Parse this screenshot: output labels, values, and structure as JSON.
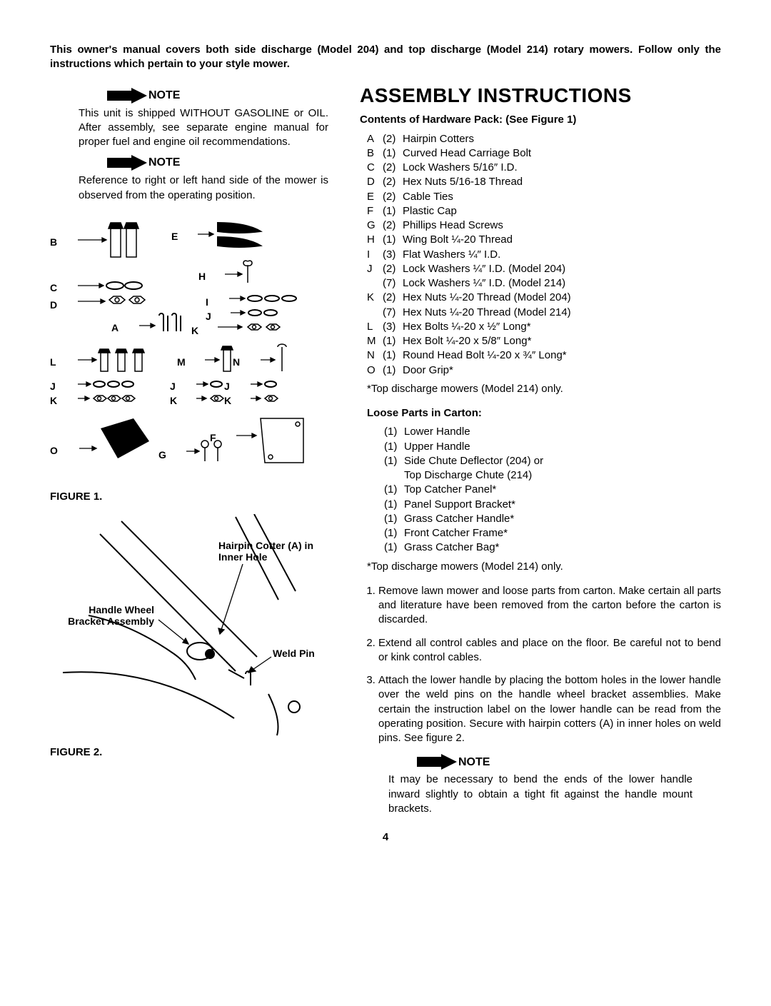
{
  "intro": "This owner's manual covers both side discharge (Model 204) and top discharge (Model 214) rotary mowers. Follow only the instructions which pertain to your style mower.",
  "notes": {
    "arrow_label": "NOTE",
    "note1": "This unit is shipped WITHOUT GASOLINE or OIL. After assembly, see separate engine manual for proper fuel and engine oil recommendations.",
    "note2": "Reference to right or left hand side of the mower is observed from the operating position.",
    "note3": "It may be necessary to bend the ends of the lower handle inward slightly to obtain a tight fit against the handle mount brackets."
  },
  "title": "ASSEMBLY INSTRUCTIONS",
  "hardware_head": "Contents of Hardware Pack: (See Figure 1)",
  "hardware": [
    {
      "l": "A",
      "q": "(2)",
      "d": "Hairpin Cotters"
    },
    {
      "l": "B",
      "q": "(1)",
      "d": "Curved Head Carriage Bolt"
    },
    {
      "l": "C",
      "q": "(2)",
      "d": "Lock Washers 5/16″ I.D."
    },
    {
      "l": "D",
      "q": "(2)",
      "d": "Hex Nuts 5/16-18 Thread"
    },
    {
      "l": "E",
      "q": "(2)",
      "d": "Cable Ties"
    },
    {
      "l": "F",
      "q": "(1)",
      "d": "Plastic Cap"
    },
    {
      "l": "G",
      "q": "(2)",
      "d": "Phillips Head Screws"
    },
    {
      "l": "H",
      "q": "(1)",
      "d": "Wing Bolt ¼-20 Thread"
    },
    {
      "l": "I",
      "q": "(3)",
      "d": "Flat Washers ¼″ I.D."
    },
    {
      "l": "J",
      "q": "(2)",
      "d": "Lock Washers ¼″ I.D. (Model 204)"
    },
    {
      "l": "",
      "q": "(7)",
      "d": "Lock Washers ¼″ I.D. (Model 214)"
    },
    {
      "l": "K",
      "q": "(2)",
      "d": "Hex Nuts ¼-20 Thread (Model 204)"
    },
    {
      "l": "",
      "q": "(7)",
      "d": "Hex Nuts ¼-20 Thread (Model 214)"
    },
    {
      "l": "L",
      "q": "(3)",
      "d": "Hex Bolts ¼-20 x ½″ Long*"
    },
    {
      "l": "M",
      "q": "(1)",
      "d": "Hex Bolt ¼-20 x 5/8″ Long*"
    },
    {
      "l": "N",
      "q": "(1)",
      "d": "Round Head Bolt ¼-20 x ¾″ Long*"
    },
    {
      "l": "O",
      "q": "(1)",
      "d": "Door Grip*"
    }
  ],
  "footnote": "*Top discharge mowers (Model 214) only.",
  "loose_head": "Loose Parts in Carton:",
  "loose": [
    {
      "q": "(1)",
      "d": "Lower Handle"
    },
    {
      "q": "(1)",
      "d": "Upper Handle"
    },
    {
      "q": "(1)",
      "d": "Side Chute Deflector (204) or"
    },
    {
      "q": "",
      "d": "Top Discharge Chute (214)"
    },
    {
      "q": "(1)",
      "d": "Top Catcher Panel*"
    },
    {
      "q": "(1)",
      "d": "Panel Support Bracket*"
    },
    {
      "q": "(1)",
      "d": "Grass Catcher Handle*"
    },
    {
      "q": "(1)",
      "d": "Front Catcher Frame*"
    },
    {
      "q": "(1)",
      "d": "Grass Catcher Bag*"
    }
  ],
  "steps": [
    "Remove lawn mower and loose parts from carton. Make certain all parts and literature have been removed from the carton before the carton is discarded.",
    "Extend all control cables and place on the floor. Be careful not to bend or kink control cables.",
    "Attach the lower handle by placing the bottom holes in the lower handle over the weld pins on the handle wheel bracket assemblies. Make certain the instruction label on the lower handle can be read from the operating position. Secure with hairpin cotters (A) in inner holes on weld pins. See figure 2."
  ],
  "fig1": {
    "caption": "FIGURE 1.",
    "labels": {
      "A": "A",
      "B": "B",
      "C": "C",
      "D": "D",
      "E": "E",
      "F": "F",
      "G": "G",
      "H": "H",
      "I": "I",
      "J": "J",
      "K": "K",
      "L": "L",
      "M": "M",
      "N": "N",
      "O": "O"
    }
  },
  "fig2": {
    "caption": "FIGURE 2.",
    "labels": {
      "hairpin": "Hairpin Cotter (A) in Inner Hole",
      "wheel": "Handle Wheel Bracket Assembly",
      "weld": "Weld Pin"
    }
  },
  "page_num": "4"
}
